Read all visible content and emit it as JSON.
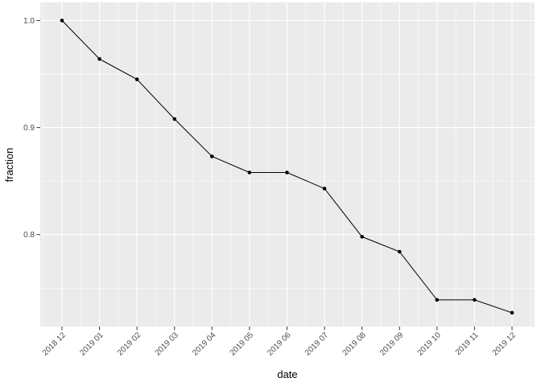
{
  "chart_data": {
    "type": "line",
    "title": "",
    "xlabel": "date",
    "ylabel": "fraction",
    "categories": [
      "2018 12",
      "2019 01",
      "2019 02",
      "2019 03",
      "2019 04",
      "2019 05",
      "2019 06",
      "2019 07",
      "2019 08",
      "2019 09",
      "2019 10",
      "2019 11",
      "2019 12"
    ],
    "values": [
      1.0,
      0.964,
      0.945,
      0.908,
      0.873,
      0.858,
      0.858,
      0.843,
      0.798,
      0.784,
      0.739,
      0.739,
      0.727
    ],
    "y_axis": {
      "major_ticks": [
        {
          "label": "1.0",
          "value": 1.0
        },
        {
          "label": "0.9",
          "value": 0.9
        },
        {
          "label": "0.8",
          "value": 0.8
        }
      ],
      "minor_ticks": [
        0.95,
        0.85,
        0.75
      ],
      "range": [
        0.714,
        1.017
      ]
    },
    "x_axis": {
      "tick_label_rotation_deg": -45
    },
    "grid": true,
    "legend": "none",
    "style": {
      "figure_background": "#FFFFFF",
      "panel_background": "#EBEBEB",
      "grid_color": "#FFFFFF",
      "line_color": "#000000",
      "point_color": "#000000",
      "tick_mark_color": "#333333",
      "tick_label_color": "#4D4D4D",
      "axis_title_color": "#000000"
    }
  }
}
